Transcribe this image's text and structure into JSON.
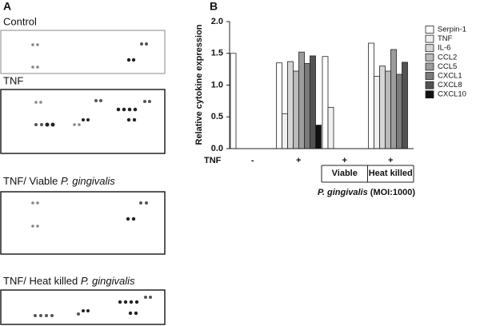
{
  "panel_a": {
    "label": "A",
    "blots": [
      {
        "title": "Control"
      },
      {
        "title": "TNF"
      },
      {
        "title": "TNF/ Viable",
        "italic": "P. gingivalis"
      },
      {
        "title": "TNF/ Heat killed",
        "italic": "P. gingivalis"
      }
    ]
  },
  "chart_data": {
    "type": "bar",
    "panel_label": "B",
    "ylabel": "Relative cytokine expression",
    "row_label": "TNF",
    "categories": [
      "-",
      "+",
      "+",
      "+"
    ],
    "group_labels": [
      "Viable",
      "Heat killed"
    ],
    "xlabel": {
      "italic": "P. gingivalis",
      "text": "(MOI:1000)"
    },
    "ylim": [
      0,
      2.0
    ],
    "yticks": [
      {
        "value": 0,
        "label": "0.0"
      },
      {
        "value": 0.5,
        "label": "0.5"
      },
      {
        "value": 1,
        "label": "1.0"
      },
      {
        "value": 1.5,
        "label": "1.5"
      },
      {
        "value": 2,
        "label": "2.0"
      }
    ],
    "series": [
      {
        "name": "Serpin-1",
        "color": "#ffffff",
        "values": [
          1.5,
          1.35,
          1.45,
          1.66
        ]
      },
      {
        "name": "TNF",
        "color": "#f0f0f0",
        "values": [
          0,
          0.55,
          0.65,
          1.14
        ]
      },
      {
        "name": "IL-6",
        "color": "#d6d6d6",
        "values": [
          0,
          1.37,
          0,
          1.3
        ]
      },
      {
        "name": "CCL2",
        "color": "#bababa",
        "values": [
          0,
          1.22,
          0,
          1.22
        ]
      },
      {
        "name": "CCL5",
        "color": "#9c9c9c",
        "values": [
          0,
          1.52,
          0,
          1.56
        ]
      },
      {
        "name": "CXCL1",
        "color": "#7a7a7a",
        "values": [
          0,
          1.34,
          0,
          1.17
        ]
      },
      {
        "name": "CXCL8",
        "color": "#525252",
        "values": [
          0,
          1.46,
          0,
          1.36
        ]
      },
      {
        "name": "CXCL10",
        "color": "#111111",
        "values": [
          0,
          0.37,
          0,
          0
        ]
      }
    ]
  }
}
